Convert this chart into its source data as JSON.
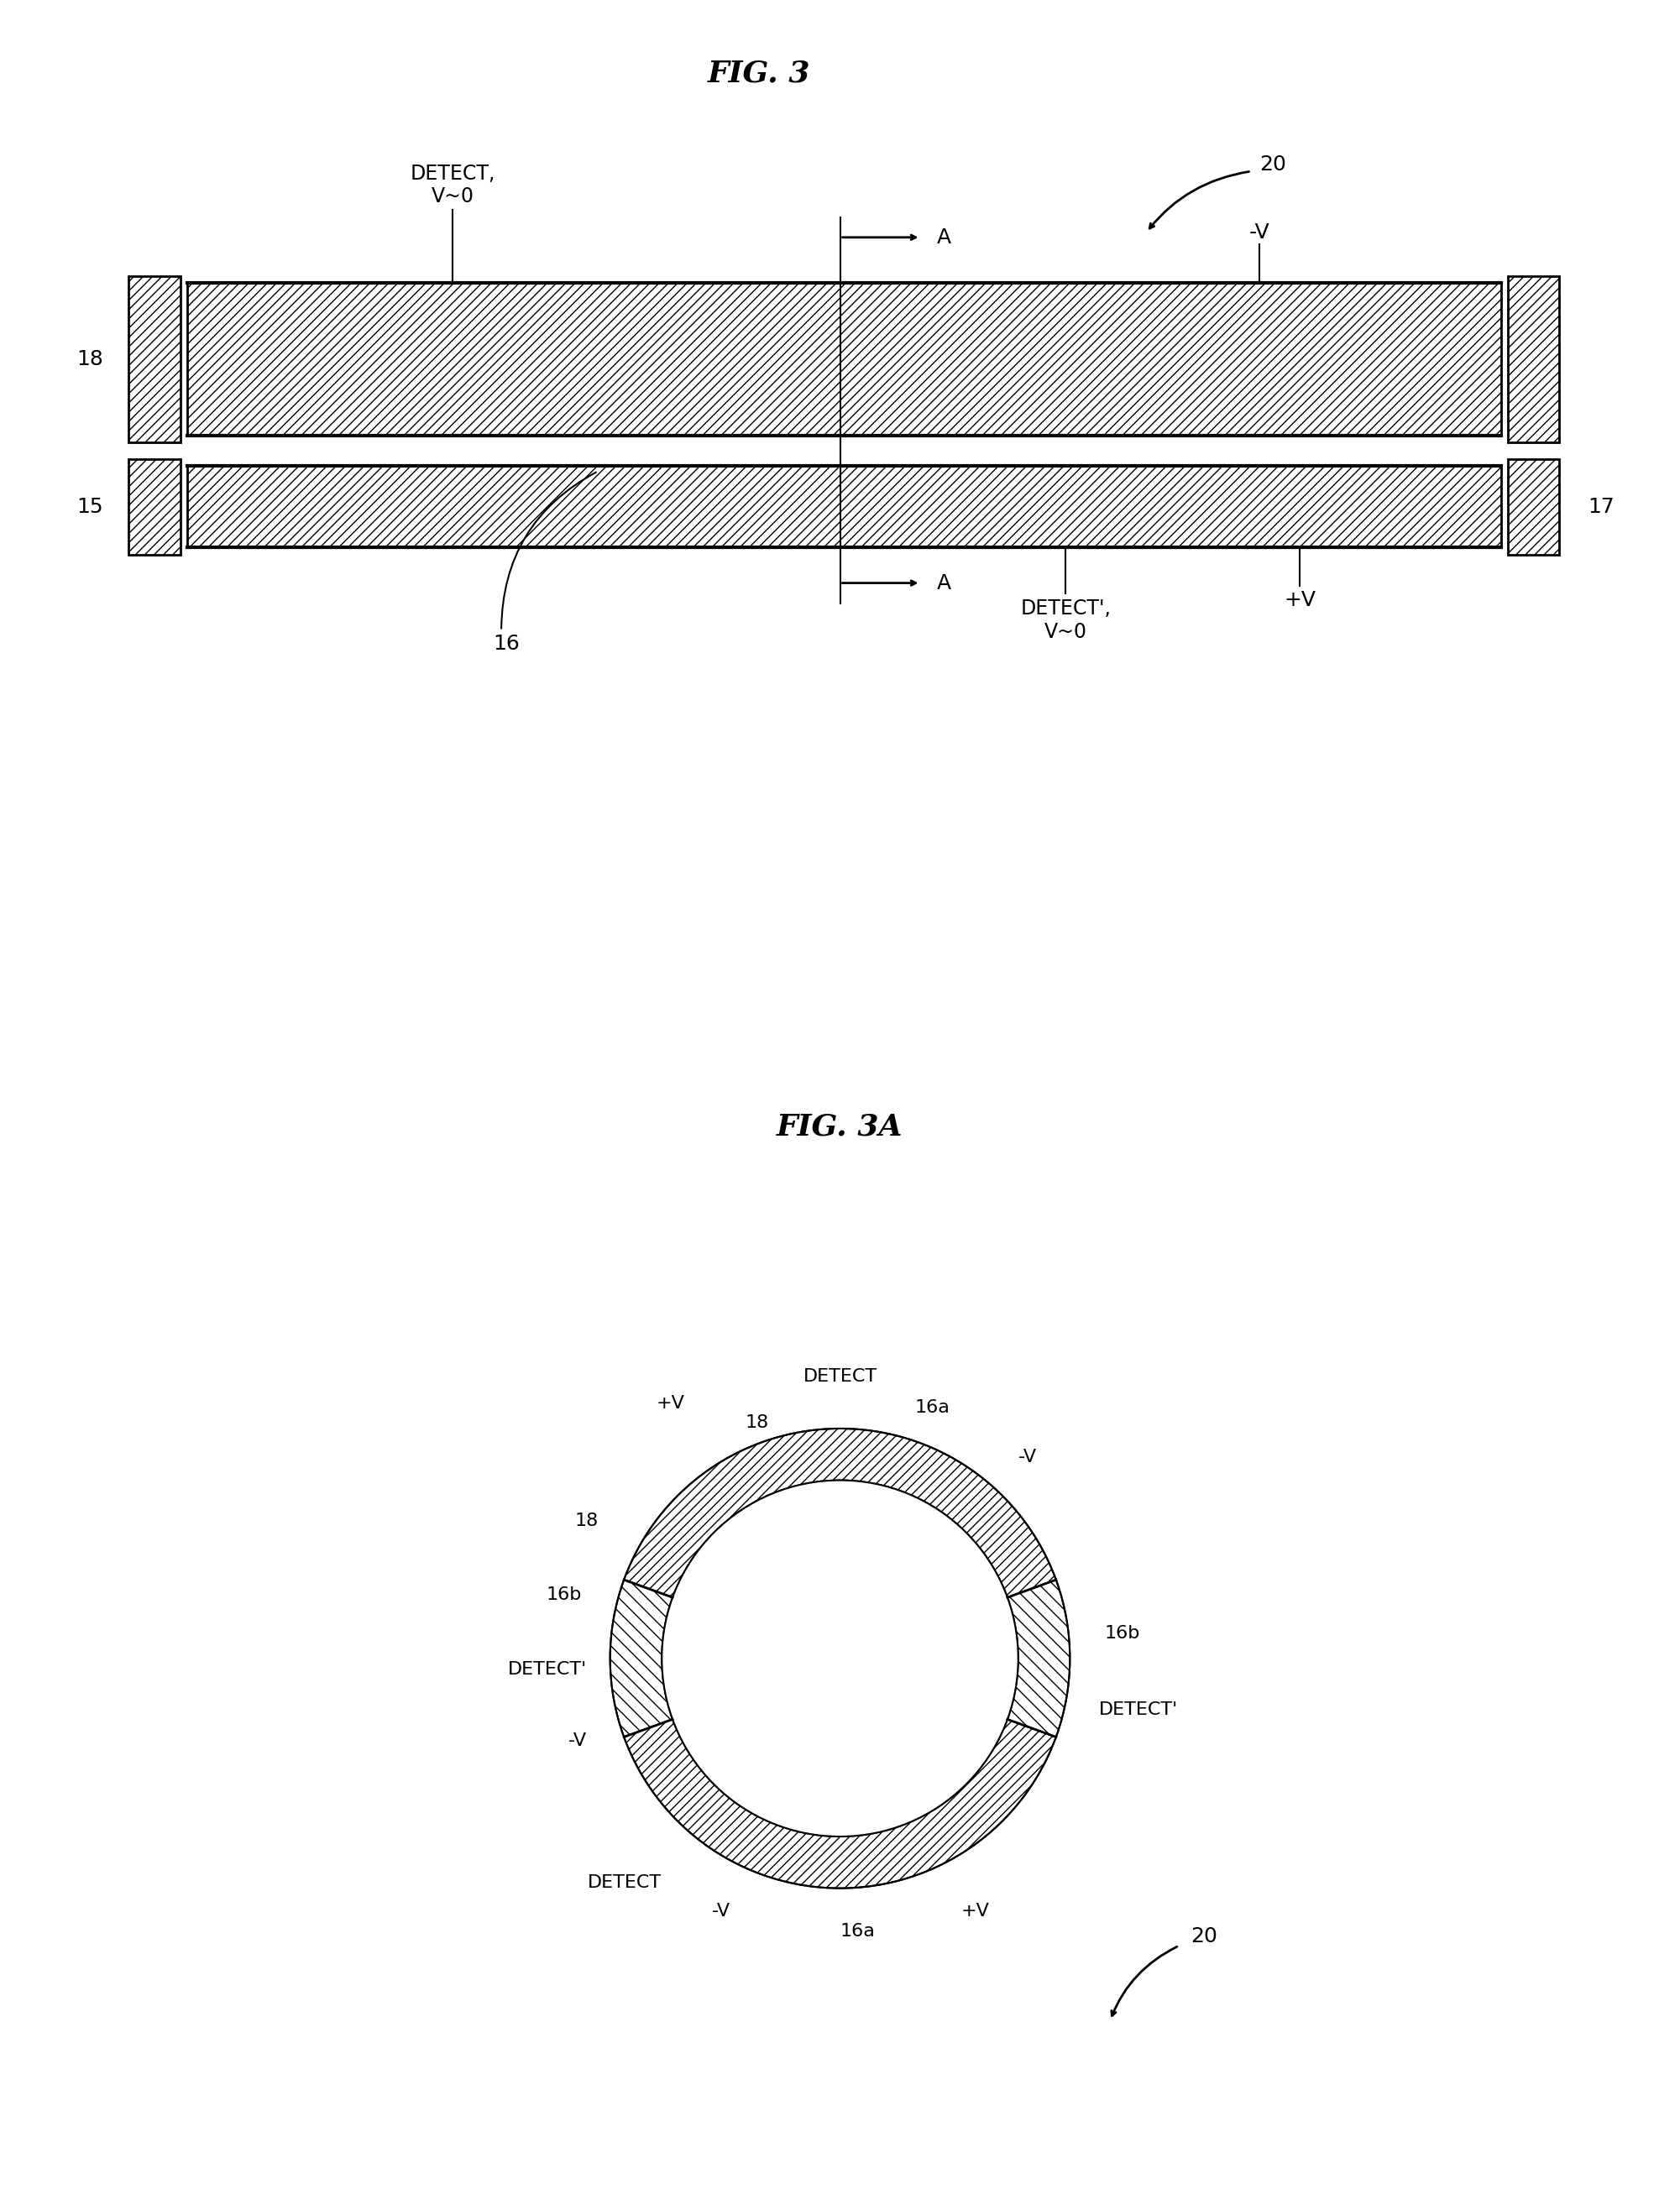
{
  "fig_title": "FIG. 3",
  "fig3a_title": "FIG. 3A",
  "background_color": "#ffffff",
  "line_color": "#000000",
  "title_fontsize": 26,
  "label_fontsize": 17,
  "fig3": {
    "label_20": "20",
    "label_18": "18",
    "label_15": "15",
    "label_16": "16",
    "label_17": "17",
    "label_A_top": "A",
    "label_A_bot": "A",
    "label_detect_top": "DETECT,\nV~0",
    "label_detect_bot": "DETECT',\nV~0",
    "label_negV": "-V",
    "label_posV": "+V"
  },
  "fig3a": {
    "label_detect_top": "DETECT",
    "label_detect_bot": "DETECT",
    "label_16a_top": "16a",
    "label_16a_bot": "16a",
    "label_16b_left": "16b",
    "label_16b_right": "16b",
    "label_18_left": "18",
    "label_18_right": "18",
    "label_detect_prime_left": "DETECT'",
    "label_detect_prime_right": "DETECT'",
    "label_negV_top": "-V",
    "label_negV_bot": "-V",
    "label_posV_top": "+V",
    "label_posV_bot": "+V",
    "label_20": "20"
  }
}
